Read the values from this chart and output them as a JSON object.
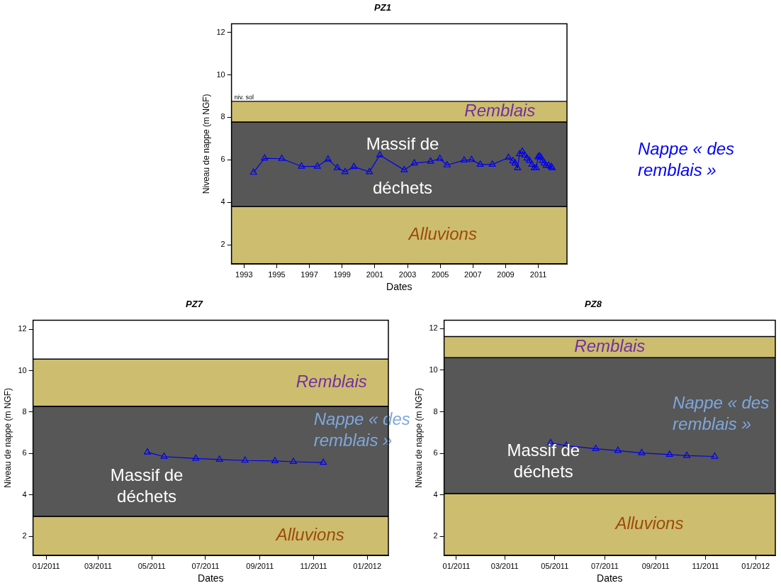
{
  "chart_data": [
    {
      "type": "line",
      "title": "PZ1",
      "xlabel": "Dates",
      "ylabel": "Niveau de nappe (m NGF)",
      "x": [
        "1993-08-01",
        "1994-04-05",
        "1995-04-25",
        "1996-07-08",
        "1997-06-28",
        "1998-02-20",
        "1998-09-16",
        "1999-03-07",
        "1999-09-21",
        "2000-09-02",
        "2001-04-22",
        "2002-10-20",
        "2003-06-03",
        "2004-05-30",
        "2004-12-24",
        "2005-06-03",
        "2006-06-18",
        "2006-12-02",
        "2007-06-13",
        "2008-03-08",
        "2009-03-05",
        "2009-06-10",
        "2009-07-31",
        "2009-09-24",
        "2009-11-07",
        "2010-01-08",
        "2010-03-04",
        "2010-04-23",
        "2010-06-17",
        "2010-08-11",
        "2010-10-01",
        "2010-11-14",
        "2010-12-28",
        "2011-01-26",
        "2011-02-28",
        "2011-04-05",
        "2011-05-15",
        "2011-06-25",
        "2011-08-18",
        "2011-10-12",
        "2011-11-07"
      ],
      "series": [
        {
          "color": "#0000ee",
          "values": [
            5.4,
            6.07,
            6.05,
            5.69,
            5.69,
            6.02,
            5.62,
            5.43,
            5.67,
            5.43,
            6.22,
            5.52,
            5.84,
            5.92,
            6.05,
            5.75,
            5.98,
            6.0,
            5.78,
            5.78,
            6.1,
            5.94,
            5.84,
            5.61,
            6.27,
            6.39,
            6.21,
            6.07,
            5.96,
            5.78,
            5.61,
            5.61,
            6.13,
            6.17,
            6.1,
            5.96,
            5.84,
            5.73,
            5.73,
            5.67,
            5.61
          ]
        }
      ],
      "xlim": [
        "1992-03-28",
        "2012-10-01"
      ],
      "xticks": [
        "1993",
        "1995",
        "1997",
        "1999",
        "2001",
        "2003",
        "2005",
        "2007",
        "2009",
        "2011"
      ],
      "ylim": [
        1.1,
        12.4
      ],
      "yticks": [
        2,
        4,
        6,
        8,
        10,
        12
      ],
      "marker": "triangle",
      "line_style": "solid",
      "grid": false,
      "legend": false,
      "bands": [
        {
          "axis": "y",
          "from": 1.1,
          "to": 3.8,
          "label": "Alluvions",
          "color": "#cdbd6f"
        },
        {
          "axis": "y",
          "from": 3.8,
          "to": 7.78,
          "label": "Massif de déchets",
          "color": "#575757"
        },
        {
          "axis": "y",
          "from": 7.78,
          "to": 8.75,
          "label": "Remblais",
          "color": "#cdbd6f"
        }
      ],
      "ref_lines": [
        {
          "axis": "y",
          "value": 8.75,
          "label": "niv. sol",
          "color": "#000000"
        }
      ],
      "annotations": [
        "Nappe « des remblais »"
      ]
    },
    {
      "type": "line",
      "title": "PZ7",
      "xlabel": "Dates",
      "ylabel": "Niveau de nappe (m NGF)",
      "x": [
        "2011-04-26",
        "2011-05-15",
        "2011-06-20",
        "2011-07-17",
        "2011-08-15",
        "2011-09-18",
        "2011-10-09",
        "2011-11-12"
      ],
      "series": [
        {
          "color": "#0000ee",
          "values": [
            6.06,
            5.85,
            5.76,
            5.71,
            5.66,
            5.64,
            5.6,
            5.56
          ]
        }
      ],
      "xlim": [
        "2010-12-17",
        "2012-01-25"
      ],
      "xticks": [
        {
          "value": "2011-01-01",
          "label": "01/2011"
        },
        {
          "value": "2011-03-01",
          "label": "03/2011"
        },
        {
          "value": "2011-05-01",
          "label": "05/2011"
        },
        {
          "value": "2011-07-01",
          "label": "07/2011"
        },
        {
          "value": "2011-09-01",
          "label": "09/2011"
        },
        {
          "value": "2011-11-01",
          "label": "11/2011"
        },
        {
          "value": "2012-01-01",
          "label": "01/2012"
        }
      ],
      "ylim": [
        1.08,
        12.43
      ],
      "yticks": [
        2,
        4,
        6,
        8,
        10,
        12
      ],
      "marker": "triangle",
      "line_style": "solid",
      "grid": false,
      "legend": false,
      "bands": [
        {
          "axis": "y",
          "from": 1.08,
          "to": 2.96,
          "label": "Alluvions",
          "color": "#cdbd6f"
        },
        {
          "axis": "y",
          "from": 2.96,
          "to": 8.28,
          "label": "Massif de déchets",
          "color": "#575757"
        },
        {
          "axis": "y",
          "from": 8.28,
          "to": 10.56,
          "label": "Remblais",
          "color": "#cdbd6f"
        }
      ],
      "annotations": [
        "Nappe « des remblais »"
      ]
    },
    {
      "type": "line",
      "title": "PZ8",
      "xlabel": "Dates",
      "ylabel": "Niveau de nappe (m NGF)",
      "x": [
        "2011-04-26",
        "2011-05-15",
        "2011-06-20",
        "2011-07-17",
        "2011-08-15",
        "2011-09-18",
        "2011-10-09",
        "2011-11-12"
      ],
      "series": [
        {
          "color": "#0000ee",
          "values": [
            6.5,
            6.37,
            6.22,
            6.13,
            6.02,
            5.94,
            5.89,
            5.85
          ]
        }
      ],
      "xlim": [
        "2010-12-17",
        "2012-01-25"
      ],
      "xticks": [
        {
          "value": "2011-01-01",
          "label": "01/2011"
        },
        {
          "value": "2011-03-01",
          "label": "03/2011"
        },
        {
          "value": "2011-05-01",
          "label": "05/2011"
        },
        {
          "value": "2011-07-01",
          "label": "07/2011"
        },
        {
          "value": "2011-09-01",
          "label": "09/2011"
        },
        {
          "value": "2011-11-01",
          "label": "11/2011"
        },
        {
          "value": "2012-01-01",
          "label": "01/2012"
        }
      ],
      "ylim": [
        1.09,
        12.4
      ],
      "yticks": [
        2,
        4,
        6,
        8,
        10,
        12
      ],
      "marker": "triangle",
      "line_style": "solid",
      "grid": false,
      "legend": false,
      "bands": [
        {
          "axis": "y",
          "from": 1.09,
          "to": 4.07,
          "label": "Alluvions",
          "color": "#cdbd6f"
        },
        {
          "axis": "y",
          "from": 4.07,
          "to": 10.6,
          "label": "Massif de déchets",
          "color": "#575757"
        },
        {
          "axis": "y",
          "from": 10.6,
          "to": 11.62,
          "label": "Remblais",
          "color": "#cdbd6f"
        }
      ],
      "annotations": [
        "Nappe « des remblais »"
      ]
    }
  ]
}
